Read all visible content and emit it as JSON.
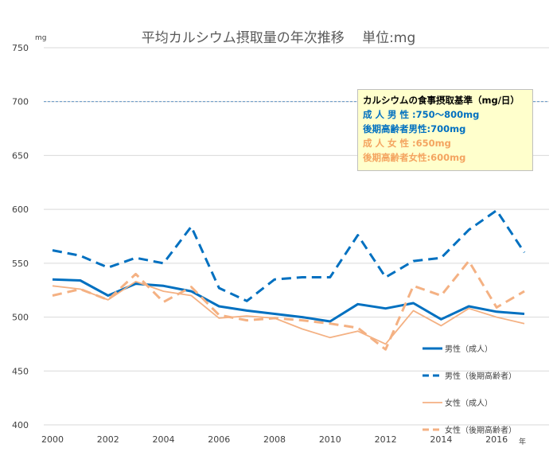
{
  "chart_data": {
    "type": "line",
    "title": "平均カルシウム摂取量の年次推移　 単位:mg",
    "unit_label": "mg",
    "xlabel": "年",
    "ylabel": "",
    "x": [
      2000,
      2001,
      2002,
      2003,
      2004,
      2005,
      2006,
      2007,
      2008,
      2009,
      2010,
      2011,
      2012,
      2013,
      2014,
      2015,
      2016,
      2017
    ],
    "x_ticks": [
      2000,
      2002,
      2004,
      2006,
      2008,
      2010,
      2012,
      2014,
      2016
    ],
    "ylim": [
      400,
      750
    ],
    "y_ticks": [
      400,
      450,
      500,
      550,
      600,
      650,
      700,
      750
    ],
    "grid": true,
    "legend_position": "right",
    "reference_line": {
      "value": 700,
      "color": "#2e75b6"
    },
    "series": [
      {
        "name": "男性（成人）",
        "color": "#0070c0",
        "style": "solid",
        "width": 3,
        "values": [
          535,
          534,
          520,
          531,
          529,
          524,
          510,
          506,
          503,
          500,
          496,
          512,
          508,
          513,
          498,
          510,
          505,
          503
        ]
      },
      {
        "name": "男性（後期高齢者）",
        "color": "#0070c0",
        "style": "dashed",
        "width": 3,
        "values": [
          562,
          557,
          546,
          555,
          550,
          584,
          527,
          515,
          535,
          537,
          537,
          576,
          537,
          552,
          555,
          581,
          599,
          560
        ]
      },
      {
        "name": "女性（成人）",
        "color": "#f4b183",
        "style": "solid",
        "width": 1.8,
        "values": [
          529,
          526,
          516,
          533,
          524,
          520,
          499,
          501,
          499,
          489,
          481,
          487,
          475,
          506,
          492,
          508,
          500,
          494
        ]
      },
      {
        "name": "女性（後期高齢者）",
        "color": "#f4b183",
        "style": "dashed",
        "width": 3,
        "values": [
          520,
          526,
          516,
          540,
          514,
          528,
          502,
          497,
          499,
          497,
          494,
          490,
          470,
          529,
          520,
          552,
          509,
          524
        ]
      }
    ]
  },
  "note": {
    "lines": [
      {
        "text": "カルシウムの食事摂取基準（mg/日）",
        "color": "#000000"
      },
      {
        "text": "成 人 男 性 :750～800mg",
        "color": "#0070c0"
      },
      {
        "text": "後期高齢者男性:700mg",
        "color": "#0070c0"
      },
      {
        "text": "成 人 女 性 :650mg",
        "color": "#f4a460"
      },
      {
        "text": "後期高齢者女性:600mg",
        "color": "#f4a460"
      }
    ]
  }
}
